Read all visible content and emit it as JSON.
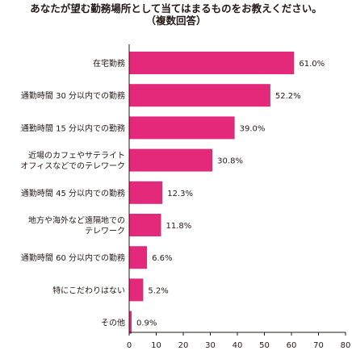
{
  "title": {
    "line1": "あなたが望む勤務場所として当てはまるものをお教えください。",
    "line2": "（複数回答）"
  },
  "chart_data": {
    "type": "bar",
    "orientation": "horizontal",
    "title": "あなたが望む勤務場所として当てはまるものをお教えください。（複数回答）",
    "categories": [
      [
        "在宅勤務"
      ],
      [
        "通勤時間 30 分以内での勤務"
      ],
      [
        "通勤時間 15 分以内での勤務"
      ],
      [
        "近場のカフェやサテライト",
        "オフィスなどでのテレワーク"
      ],
      [
        "通勤時間 45 分以内での勤務"
      ],
      [
        "地方や海外など遠隔地での",
        "テレワーク"
      ],
      [
        "通勤時間 60 分以内での勤務"
      ],
      [
        "特にこだわりはない"
      ],
      [
        "その他"
      ]
    ],
    "values": [
      61.0,
      52.2,
      39.0,
      30.8,
      12.3,
      11.8,
      6.6,
      5.2,
      0.9
    ],
    "value_labels": [
      "61.0%",
      "52.2%",
      "39.0%",
      "30.8%",
      "12.3%",
      "11.8%",
      "6.6%",
      "5.2%",
      "0.9%"
    ],
    "xlim": [
      0,
      80
    ],
    "xticks": [
      "0",
      "10",
      "20",
      "30",
      "40",
      "50",
      "60",
      "70",
      "80"
    ],
    "xlabel": "",
    "ylabel": "",
    "grid": false,
    "bar_color": "#e4287a"
  }
}
